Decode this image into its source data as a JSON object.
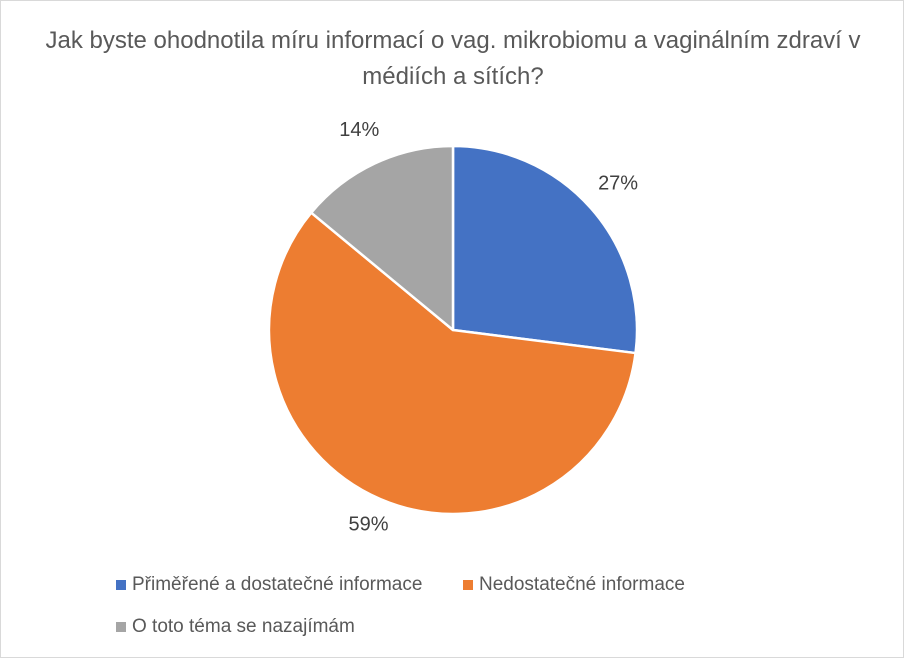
{
  "chart_data": {
    "type": "pie",
    "title": "Jak byste ohodnotila míru informací o vag. mikrobiomu a vaginálním zdraví v médiích a sítích?",
    "categories": [
      "Přiměřené a dostatečné informace",
      "Nedostatečné informace",
      "O toto téma se nazajímám"
    ],
    "values": [
      27,
      59,
      14
    ],
    "data_labels": [
      "27%",
      "59%",
      "14%"
    ],
    "colors": [
      "#4472C4",
      "#ED7D31",
      "#A5A5A5"
    ],
    "legend_position": "bottom"
  }
}
